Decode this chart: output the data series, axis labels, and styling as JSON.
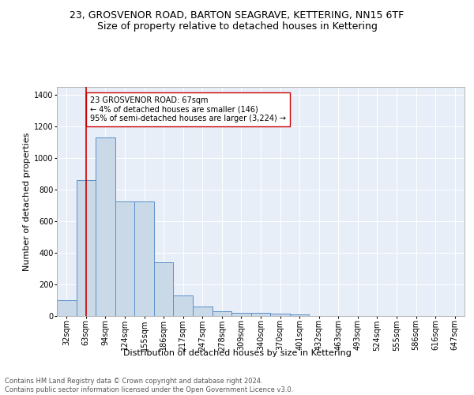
{
  "title": "23, GROSVENOR ROAD, BARTON SEAGRAVE, KETTERING, NN15 6TF",
  "subtitle": "Size of property relative to detached houses in Kettering",
  "xlabel": "Distribution of detached houses by size in Kettering",
  "ylabel": "Number of detached properties",
  "categories": [
    "32sqm",
    "63sqm",
    "94sqm",
    "124sqm",
    "155sqm",
    "186sqm",
    "217sqm",
    "247sqm",
    "278sqm",
    "309sqm",
    "340sqm",
    "370sqm",
    "401sqm",
    "432sqm",
    "463sqm",
    "493sqm",
    "524sqm",
    "555sqm",
    "586sqm",
    "616sqm",
    "647sqm"
  ],
  "values": [
    100,
    860,
    1130,
    725,
    725,
    340,
    130,
    62,
    30,
    22,
    20,
    14,
    12,
    0,
    0,
    0,
    0,
    0,
    0,
    0,
    0
  ],
  "bar_color": "#c9d9e8",
  "bar_edge_color": "#5b8fc9",
  "property_line_x": 1,
  "property_line_color": "#cc0000",
  "annotation_text": "23 GROSVENOR ROAD: 67sqm\n← 4% of detached houses are smaller (146)\n95% of semi-detached houses are larger (3,224) →",
  "annotation_box_color": "#ffffff",
  "annotation_box_edge_color": "#cc0000",
  "ylim": [
    0,
    1450
  ],
  "yticks": [
    0,
    200,
    400,
    600,
    800,
    1000,
    1200,
    1400
  ],
  "background_color": "#e8eef8",
  "footer_text": "Contains HM Land Registry data © Crown copyright and database right 2024.\nContains public sector information licensed under the Open Government Licence v3.0.",
  "title_fontsize": 9,
  "subtitle_fontsize": 9,
  "xlabel_fontsize": 8,
  "ylabel_fontsize": 8,
  "tick_fontsize": 7,
  "footer_fontsize": 6,
  "annot_fontsize": 7
}
